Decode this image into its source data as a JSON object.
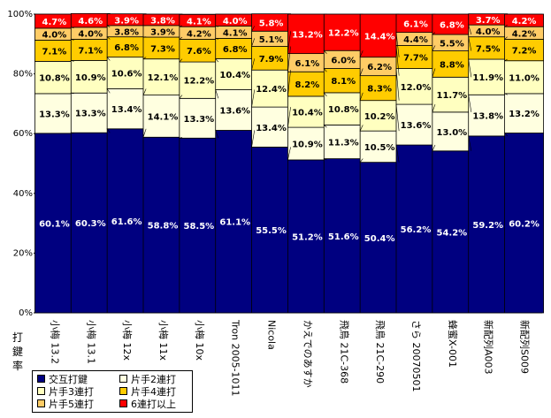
{
  "chart_data": {
    "type": "bar",
    "stacked": true,
    "percent": true,
    "ylabel": "打鍵率",
    "yticks": [
      "0%",
      "20%",
      "40%",
      "60%",
      "80%",
      "100%"
    ],
    "ylim": [
      0,
      100
    ],
    "grid": false,
    "plot_background": "#c0c0c0",
    "categories": [
      "小梅 13.2",
      "小梅 13.1",
      "小梅 12x",
      "小梅 11x",
      "小梅 10x",
      "Tron 2005-1011",
      "Nicola",
      "かえでのあすか",
      "飛鳥 21C-368",
      "飛鳥 21C-290",
      "さら 20070501",
      "蜂蜜X-001",
      "新配列A003",
      "新配列S009"
    ],
    "series": [
      {
        "name": "交互打鍵",
        "color": "#000080",
        "label_color": "#ffffff",
        "values": [
          60.1,
          60.3,
          61.6,
          58.8,
          58.5,
          61.1,
          55.5,
          51.2,
          51.6,
          50.4,
          56.2,
          54.2,
          59.2,
          60.2
        ],
        "labels": [
          "60.1%",
          "60.3%",
          "61.6%",
          "58.8%",
          "58.5%",
          "61.1%",
          "55.5%",
          "51.2%",
          "51.6%",
          "50.4%",
          "56.2%",
          "54.2%",
          "59.2%",
          "60.2%"
        ]
      },
      {
        "name": "片手2連打",
        "color": "#ffffe0",
        "label_color": "#000000",
        "values": [
          13.3,
          13.3,
          13.4,
          14.1,
          13.3,
          13.6,
          13.4,
          10.9,
          11.3,
          10.5,
          13.6,
          13.0,
          13.8,
          13.2
        ],
        "labels": [
          "13.3%",
          "13.3%",
          "13.4%",
          "14.1%",
          "13.3%",
          "13.6%",
          "13.4%",
          "10.9%",
          "11.3%",
          "10.5%",
          "13.6%",
          "13.0%",
          "13.8%",
          "13.2%"
        ]
      },
      {
        "name": "片手3連打",
        "color": "#ffffc0",
        "label_color": "#000000",
        "values": [
          10.8,
          10.9,
          10.6,
          12.1,
          12.2,
          10.4,
          12.4,
          10.4,
          10.8,
          10.2,
          12.0,
          11.7,
          11.9,
          11.0
        ],
        "labels": [
          "10.8%",
          "10.9%",
          "10.6%",
          "12.1%",
          "12.2%",
          "10.4%",
          "12.4%",
          "10.4%",
          "10.8%",
          "10.2%",
          "12.0%",
          "11.7%",
          "11.9%",
          "11.0%"
        ]
      },
      {
        "name": "片手4連打",
        "color": "#ffcc00",
        "label_color": "#000000",
        "values": [
          7.1,
          7.1,
          6.8,
          7.3,
          7.6,
          6.8,
          7.9,
          8.2,
          8.1,
          8.3,
          7.7,
          8.8,
          7.5,
          7.2
        ],
        "labels": [
          "7.1%",
          "7.1%",
          "6.8%",
          "7.3%",
          "7.6%",
          "6.8%",
          "7.9%",
          "8.2%",
          "8.1%",
          "8.3%",
          "7.7%",
          "8.8%",
          "7.5%",
          "7.2%"
        ]
      },
      {
        "name": "片手5連打",
        "color": "#ffcc66",
        "label_color": "#000000",
        "values": [
          4.0,
          4.0,
          3.8,
          3.9,
          4.2,
          4.1,
          5.1,
          6.1,
          6.0,
          6.2,
          4.4,
          5.5,
          4.0,
          4.2
        ],
        "labels": [
          "4.0%",
          "4.0%",
          "3.8%",
          "3.9%",
          "4.2%",
          "4.1%",
          "5.1%",
          "6.1%",
          "6.0%",
          "6.2%",
          "4.4%",
          "5.5%",
          "4.0%",
          "4.2%"
        ]
      },
      {
        "name": "6連打以上",
        "color": "#ff0000",
        "label_color": "#ffffff",
        "values": [
          4.7,
          4.6,
          3.9,
          3.8,
          4.1,
          4.0,
          5.8,
          13.2,
          12.2,
          14.4,
          6.1,
          6.8,
          3.7,
          4.2
        ],
        "labels": [
          "4.7%",
          "4.6%",
          "3.9%",
          "3.8%",
          "4.1%",
          "4.0%",
          "5.8%",
          "13.2%",
          "12.2%",
          "14.4%",
          "6.1%",
          "6.8%",
          "3.7%",
          "4.2%"
        ]
      }
    ],
    "legend": {
      "position": "bottom-left",
      "order": [
        0,
        1,
        2,
        3,
        4,
        5
      ]
    }
  }
}
